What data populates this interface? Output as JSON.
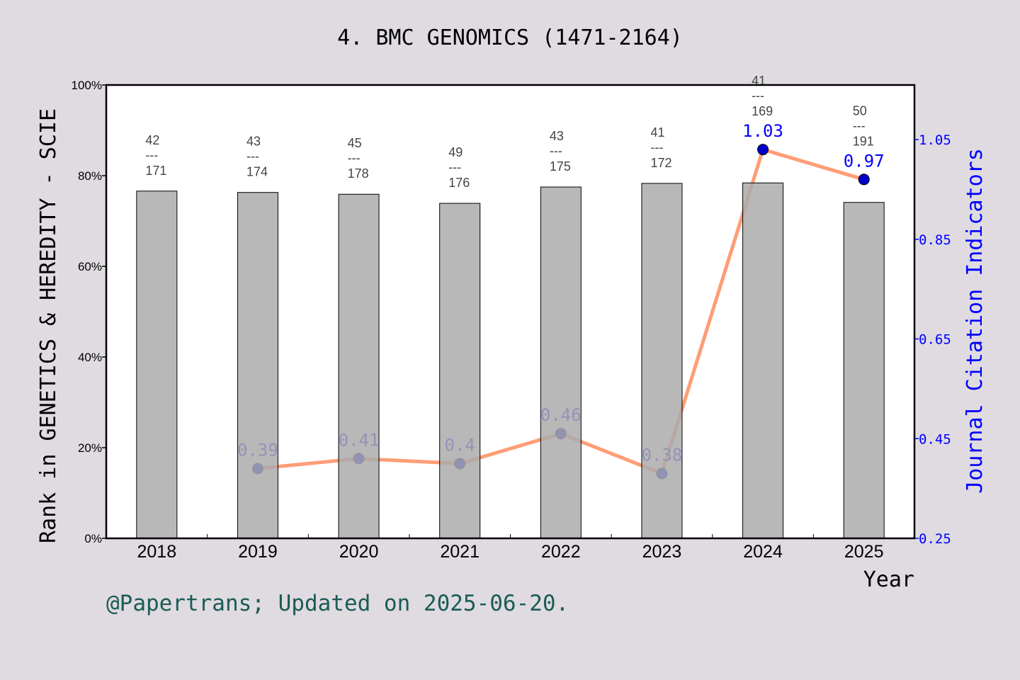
{
  "title": "4. BMC GENOMICS (1471-2164)",
  "footer": "@Papertrans; Updated on 2025-06-20.",
  "colors": {
    "bar": "#ababad",
    "line": "#ff8c5f",
    "marker": "#0000cd",
    "right_axis": "#0000ff",
    "footer": "#1a5c55",
    "background": "#dfdbe0"
  },
  "chart_data": {
    "type": "bar+line",
    "categories": [
      "2018",
      "2019",
      "2020",
      "2021",
      "2022",
      "2023",
      "2024",
      "2025"
    ],
    "xlabel": "Year",
    "ylabel": "Rank in GENETICS & HEREDITY - SCIE",
    "ylabel_right": "Journal Citation Indicators",
    "ylim": [
      0,
      100
    ],
    "ylim_right": [
      0.25,
      1.15
    ],
    "yticks": [
      "0%",
      "20%",
      "40%",
      "60%",
      "80%",
      "100%"
    ],
    "yticks_right": [
      "0.25",
      "0.45",
      "0.65",
      "0.85",
      "1.05"
    ],
    "bars": {
      "values": [
        76.6,
        76.3,
        75.9,
        73.9,
        77.5,
        78.3,
        78.4,
        74.1
      ],
      "rank_labels": [
        {
          "rank": "42",
          "total": "171"
        },
        {
          "rank": "43",
          "total": "174"
        },
        {
          "rank": "45",
          "total": "178"
        },
        {
          "rank": "49",
          "total": "176"
        },
        {
          "rank": "43",
          "total": "175"
        },
        {
          "rank": "41",
          "total": "172"
        },
        {
          "rank": "41",
          "total": "169"
        },
        {
          "rank": "50",
          "total": "191"
        }
      ],
      "separator": "---"
    },
    "line": {
      "values": [
        null,
        0.39,
        0.41,
        0.4,
        0.46,
        0.38,
        1.03,
        0.97
      ],
      "labels": [
        "",
        "0.39",
        "0.41",
        "0.4",
        "0.46",
        "0.38",
        "1.03",
        "0.97"
      ]
    }
  }
}
